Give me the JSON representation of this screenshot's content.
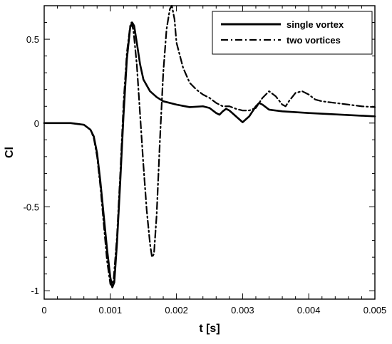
{
  "chart_data": {
    "type": "line",
    "title": "",
    "xlabel": "t [s]",
    "ylabel": "Cl",
    "xlim": [
      0,
      0.005
    ],
    "ylim": [
      -1.05,
      0.7
    ],
    "x_ticks": [
      0,
      0.001,
      0.002,
      0.003,
      0.004,
      0.005
    ],
    "x_tick_labels": [
      "0",
      "0.001",
      "0.002",
      "0.003",
      "0.004",
      "0.005"
    ],
    "y_ticks": [
      -1,
      -0.5,
      0,
      0.5
    ],
    "y_tick_labels": [
      "-1",
      "-0.5",
      "0",
      "0.5"
    ],
    "grid": false,
    "legend_position": "top-right",
    "series": [
      {
        "name": "single vortex",
        "style": "solid",
        "color": "#000000",
        "points": [
          [
            0,
            0
          ],
          [
            0.0004,
            0
          ],
          [
            0.0006,
            -0.01
          ],
          [
            0.0007,
            -0.04
          ],
          [
            0.00075,
            -0.08
          ],
          [
            0.0008,
            -0.18
          ],
          [
            0.00085,
            -0.35
          ],
          [
            0.0009,
            -0.55
          ],
          [
            0.00095,
            -0.75
          ],
          [
            0.001,
            -0.92
          ],
          [
            0.00103,
            -0.98
          ],
          [
            0.00106,
            -0.95
          ],
          [
            0.0011,
            -0.72
          ],
          [
            0.00115,
            -0.35
          ],
          [
            0.0012,
            0.05
          ],
          [
            0.00125,
            0.38
          ],
          [
            0.0013,
            0.57
          ],
          [
            0.00133,
            0.6
          ],
          [
            0.00136,
            0.58
          ],
          [
            0.0014,
            0.48
          ],
          [
            0.00145,
            0.35
          ],
          [
            0.0015,
            0.26
          ],
          [
            0.0016,
            0.19
          ],
          [
            0.0017,
            0.155
          ],
          [
            0.0018,
            0.13
          ],
          [
            0.002,
            0.11
          ],
          [
            0.0022,
            0.095
          ],
          [
            0.0024,
            0.1
          ],
          [
            0.0025,
            0.09
          ],
          [
            0.0026,
            0.06
          ],
          [
            0.00265,
            0.05
          ],
          [
            0.0027,
            0.07
          ],
          [
            0.00275,
            0.085
          ],
          [
            0.0028,
            0.075
          ],
          [
            0.0029,
            0.04
          ],
          [
            0.003,
            0.005
          ],
          [
            0.0031,
            0.04
          ],
          [
            0.0032,
            0.1
          ],
          [
            0.00325,
            0.12
          ],
          [
            0.0033,
            0.11
          ],
          [
            0.0034,
            0.08
          ],
          [
            0.0036,
            0.07
          ],
          [
            0.004,
            0.06
          ],
          [
            0.0045,
            0.05
          ],
          [
            0.005,
            0.04
          ]
        ]
      },
      {
        "name": "two vortices",
        "style": "dashdot",
        "color": "#000000",
        "points": [
          [
            0,
            0
          ],
          [
            0.0004,
            0
          ],
          [
            0.0006,
            -0.01
          ],
          [
            0.0007,
            -0.04
          ],
          [
            0.00075,
            -0.09
          ],
          [
            0.0008,
            -0.2
          ],
          [
            0.00085,
            -0.38
          ],
          [
            0.0009,
            -0.6
          ],
          [
            0.00095,
            -0.82
          ],
          [
            0.001,
            -0.96
          ],
          [
            0.00102,
            -0.97
          ],
          [
            0.00105,
            -0.93
          ],
          [
            0.0011,
            -0.68
          ],
          [
            0.00115,
            -0.3
          ],
          [
            0.0012,
            0.12
          ],
          [
            0.00125,
            0.42
          ],
          [
            0.0013,
            0.58
          ],
          [
            0.00132,
            0.6
          ],
          [
            0.00135,
            0.55
          ],
          [
            0.0014,
            0.35
          ],
          [
            0.00145,
            0.05
          ],
          [
            0.0015,
            -0.25
          ],
          [
            0.00155,
            -0.52
          ],
          [
            0.0016,
            -0.72
          ],
          [
            0.00163,
            -0.8
          ],
          [
            0.00166,
            -0.78
          ],
          [
            0.0017,
            -0.55
          ],
          [
            0.00175,
            -0.1
          ],
          [
            0.0018,
            0.3
          ],
          [
            0.00185,
            0.56
          ],
          [
            0.0019,
            0.68
          ],
          [
            0.00193,
            0.7
          ],
          [
            0.00197,
            0.62
          ],
          [
            0.002,
            0.48
          ],
          [
            0.0021,
            0.33
          ],
          [
            0.0022,
            0.24
          ],
          [
            0.0023,
            0.2
          ],
          [
            0.0024,
            0.17
          ],
          [
            0.0025,
            0.15
          ],
          [
            0.0026,
            0.12
          ],
          [
            0.0027,
            0.1
          ],
          [
            0.0028,
            0.1
          ],
          [
            0.0029,
            0.085
          ],
          [
            0.003,
            0.075
          ],
          [
            0.0031,
            0.075
          ],
          [
            0.0032,
            0.09
          ],
          [
            0.0033,
            0.15
          ],
          [
            0.0034,
            0.19
          ],
          [
            0.0035,
            0.16
          ],
          [
            0.0036,
            0.11
          ],
          [
            0.00365,
            0.1
          ],
          [
            0.0037,
            0.13
          ],
          [
            0.0038,
            0.18
          ],
          [
            0.0039,
            0.19
          ],
          [
            0.004,
            0.17
          ],
          [
            0.0041,
            0.14
          ],
          [
            0.0042,
            0.13
          ],
          [
            0.0044,
            0.12
          ],
          [
            0.0046,
            0.11
          ],
          [
            0.0048,
            0.1
          ],
          [
            0.005,
            0.095
          ]
        ]
      }
    ]
  }
}
